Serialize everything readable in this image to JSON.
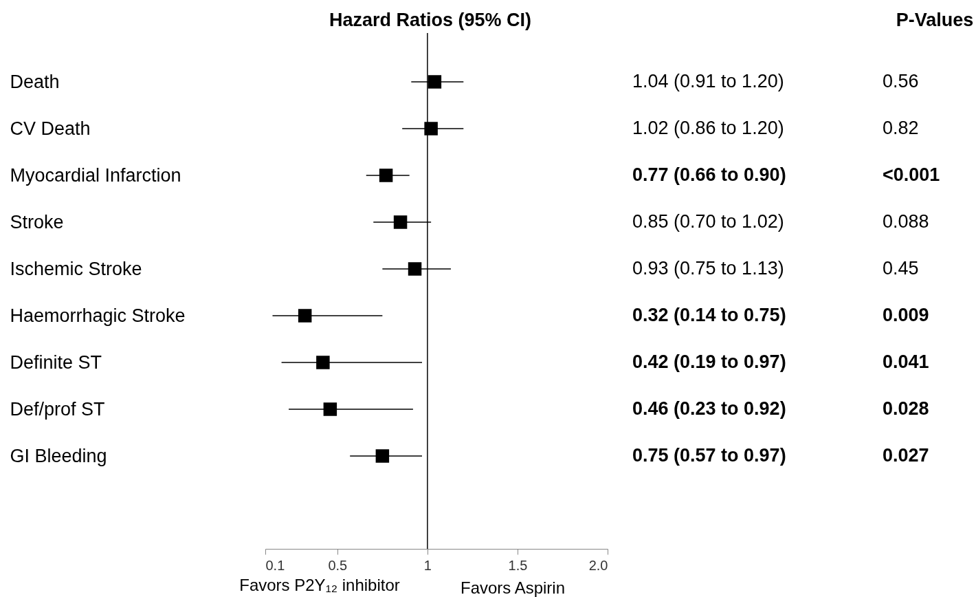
{
  "chart_data": {
    "type": "scatter",
    "title": "Hazard Ratios (95% CI)",
    "categories": [
      "Death",
      "CV Death",
      "Myocardial Infarction",
      "Stroke",
      "Ischemic Stroke",
      "Haemorrhagic  Stroke",
      "Definite ST",
      "Def/prof ST",
      "GI Bleeding"
    ],
    "values": [
      1.04,
      1.02,
      0.77,
      0.85,
      0.93,
      0.32,
      0.42,
      0.46,
      0.75
    ],
    "errors": [
      [
        0.91,
        1.2
      ],
      [
        0.86,
        1.2
      ],
      [
        0.66,
        0.9
      ],
      [
        0.7,
        1.02
      ],
      [
        0.75,
        1.13
      ],
      [
        0.14,
        0.75
      ],
      [
        0.19,
        0.97
      ],
      [
        0.23,
        0.92
      ],
      [
        0.57,
        0.97
      ]
    ],
    "value_labels": [
      "1.04 (0.91 to 1.20)",
      "1.02 (0.86 to 1.20)",
      "0.77 (0.66 to 0.90)",
      "0.85 (0.70 to 1.02)",
      "0.93 (0.75 to 1.13)",
      "0.32 (0.14 to 0.75)",
      "0.42 (0.19 to 0.97)",
      "0.46 (0.23 to 0.92)",
      "0.75 (0.57 to 0.97)"
    ],
    "color": "#000000",
    "marker": "square",
    "orientation": "horizontal",
    "xlim": [
      0.1,
      2.0
    ],
    "xticks": [
      0.1,
      0.5,
      1,
      1.5,
      {
        "value": 2.0,
        "label": "2.0"
      }
    ],
    "ref_lines": [
      {
        "axis": "x",
        "value": 1
      }
    ],
    "annotations": [
      "P-Values",
      "0.56",
      "0.82",
      "<0.001",
      "0.088",
      "0.45",
      "0.009",
      "0.041",
      "0.028",
      "0.027",
      "Favors P2Y₁₂ inhibitor",
      "Favors Aspirin"
    ],
    "grid": false
  }
}
